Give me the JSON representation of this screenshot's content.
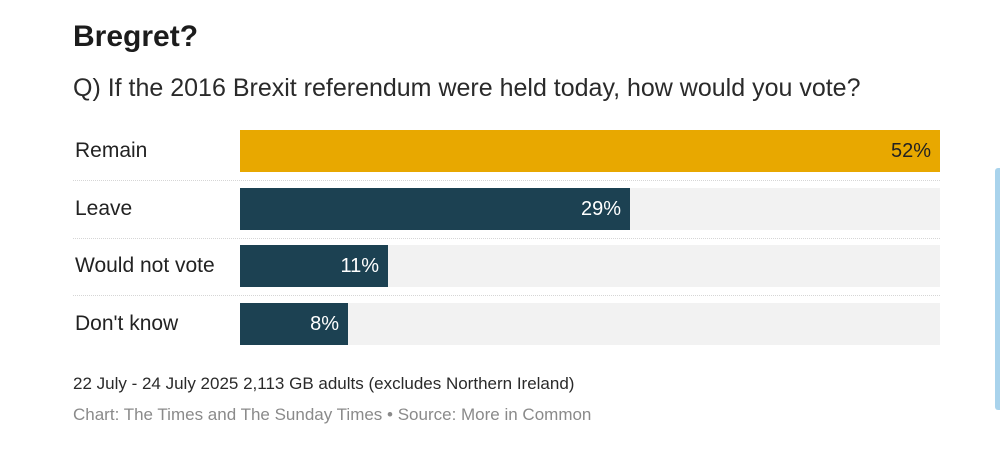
{
  "title": "Bregret?",
  "subtitle": "Q) If the 2016 Brexit referendum were held today, how would you vote?",
  "note": "22 July - 24 July 2025 2,113 GB adults (excludes Northern Ireland)",
  "credit": "Chart: The Times and The Sunday Times • Source: More in Common",
  "colors": {
    "highlight": "#e8a800",
    "default": "#1c4152",
    "track": "#f2f2f2",
    "value_on_highlight": "#222222",
    "value_on_default": "#ffffff"
  },
  "chart_data": {
    "type": "bar",
    "orientation": "horizontal",
    "categories": [
      "Remain",
      "Leave",
      "Would not vote",
      "Don't know"
    ],
    "values": [
      52,
      29,
      11,
      8
    ],
    "value_labels": [
      "52%",
      "29%",
      "11%",
      "8%"
    ],
    "highlight_index": 0,
    "xlim": [
      0,
      52
    ],
    "grid": false,
    "legend": "none"
  }
}
